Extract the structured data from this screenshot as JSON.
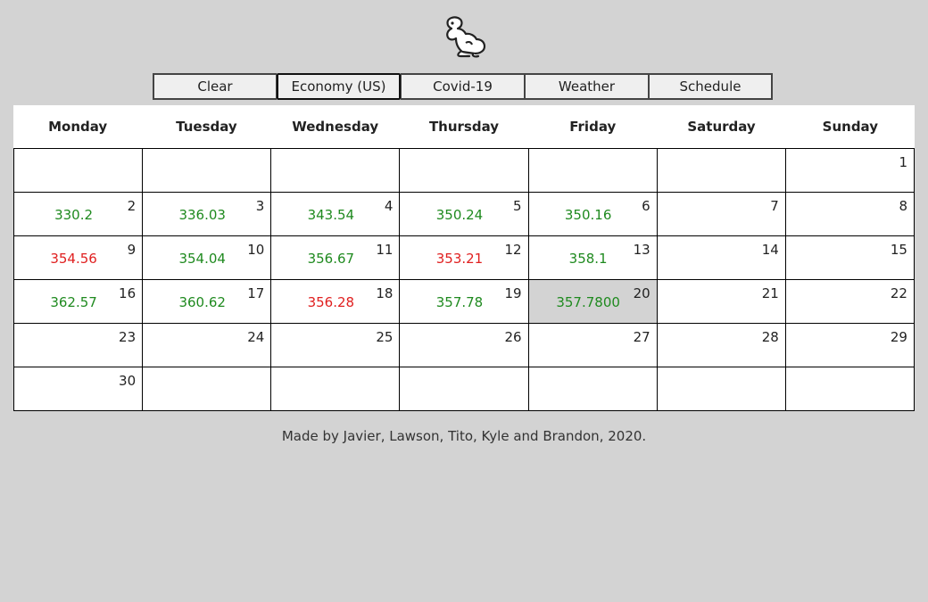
{
  "nav": {
    "buttons": [
      {
        "label": "Clear",
        "active": false
      },
      {
        "label": "Economy (US)",
        "active": true
      },
      {
        "label": "Covid-19",
        "active": false
      },
      {
        "label": "Weather",
        "active": false
      },
      {
        "label": "Schedule",
        "active": false
      }
    ]
  },
  "calendar": {
    "weekdays": [
      "Monday",
      "Tuesday",
      "Wednesday",
      "Thursday",
      "Friday",
      "Saturday",
      "Sunday"
    ],
    "weeks": [
      [
        {
          "day": "",
          "value": "",
          "trend": ""
        },
        {
          "day": "",
          "value": "",
          "trend": ""
        },
        {
          "day": "",
          "value": "",
          "trend": ""
        },
        {
          "day": "",
          "value": "",
          "trend": ""
        },
        {
          "day": "",
          "value": "",
          "trend": ""
        },
        {
          "day": "",
          "value": "",
          "trend": ""
        },
        {
          "day": "1",
          "value": "",
          "trend": ""
        }
      ],
      [
        {
          "day": "2",
          "value": "330.2",
          "trend": "up"
        },
        {
          "day": "3",
          "value": "336.03",
          "trend": "up"
        },
        {
          "day": "4",
          "value": "343.54",
          "trend": "up"
        },
        {
          "day": "5",
          "value": "350.24",
          "trend": "up"
        },
        {
          "day": "6",
          "value": "350.16",
          "trend": "up"
        },
        {
          "day": "7",
          "value": "",
          "trend": ""
        },
        {
          "day": "8",
          "value": "",
          "trend": ""
        }
      ],
      [
        {
          "day": "9",
          "value": "354.56",
          "trend": "down"
        },
        {
          "day": "10",
          "value": "354.04",
          "trend": "up"
        },
        {
          "day": "11",
          "value": "356.67",
          "trend": "up"
        },
        {
          "day": "12",
          "value": "353.21",
          "trend": "down"
        },
        {
          "day": "13",
          "value": "358.1",
          "trend": "up"
        },
        {
          "day": "14",
          "value": "",
          "trend": ""
        },
        {
          "day": "15",
          "value": "",
          "trend": ""
        }
      ],
      [
        {
          "day": "16",
          "value": "362.57",
          "trend": "up"
        },
        {
          "day": "17",
          "value": "360.62",
          "trend": "up"
        },
        {
          "day": "18",
          "value": "356.28",
          "trend": "down"
        },
        {
          "day": "19",
          "value": "357.78",
          "trend": "up"
        },
        {
          "day": "20",
          "value": "357.7800",
          "trend": "up",
          "today": true
        },
        {
          "day": "21",
          "value": "",
          "trend": ""
        },
        {
          "day": "22",
          "value": "",
          "trend": ""
        }
      ],
      [
        {
          "day": "23",
          "value": "",
          "trend": ""
        },
        {
          "day": "24",
          "value": "",
          "trend": ""
        },
        {
          "day": "25",
          "value": "",
          "trend": ""
        },
        {
          "day": "26",
          "value": "",
          "trend": ""
        },
        {
          "day": "27",
          "value": "",
          "trend": ""
        },
        {
          "day": "28",
          "value": "",
          "trend": ""
        },
        {
          "day": "29",
          "value": "",
          "trend": ""
        }
      ],
      [
        {
          "day": "30",
          "value": "",
          "trend": ""
        },
        {
          "day": "",
          "value": "",
          "trend": ""
        },
        {
          "day": "",
          "value": "",
          "trend": ""
        },
        {
          "day": "",
          "value": "",
          "trend": ""
        },
        {
          "day": "",
          "value": "",
          "trend": ""
        },
        {
          "day": "",
          "value": "",
          "trend": ""
        },
        {
          "day": "",
          "value": "",
          "trend": ""
        }
      ]
    ]
  },
  "footer": {
    "text": "Made by Javier, Lawson, Tito, Kyle and Brandon, 2020."
  },
  "colors": {
    "up": "#1f8a1f",
    "down": "#e02020",
    "background": "#d3d3d3"
  },
  "icons": {
    "logo": "rabbit-logo-icon"
  }
}
